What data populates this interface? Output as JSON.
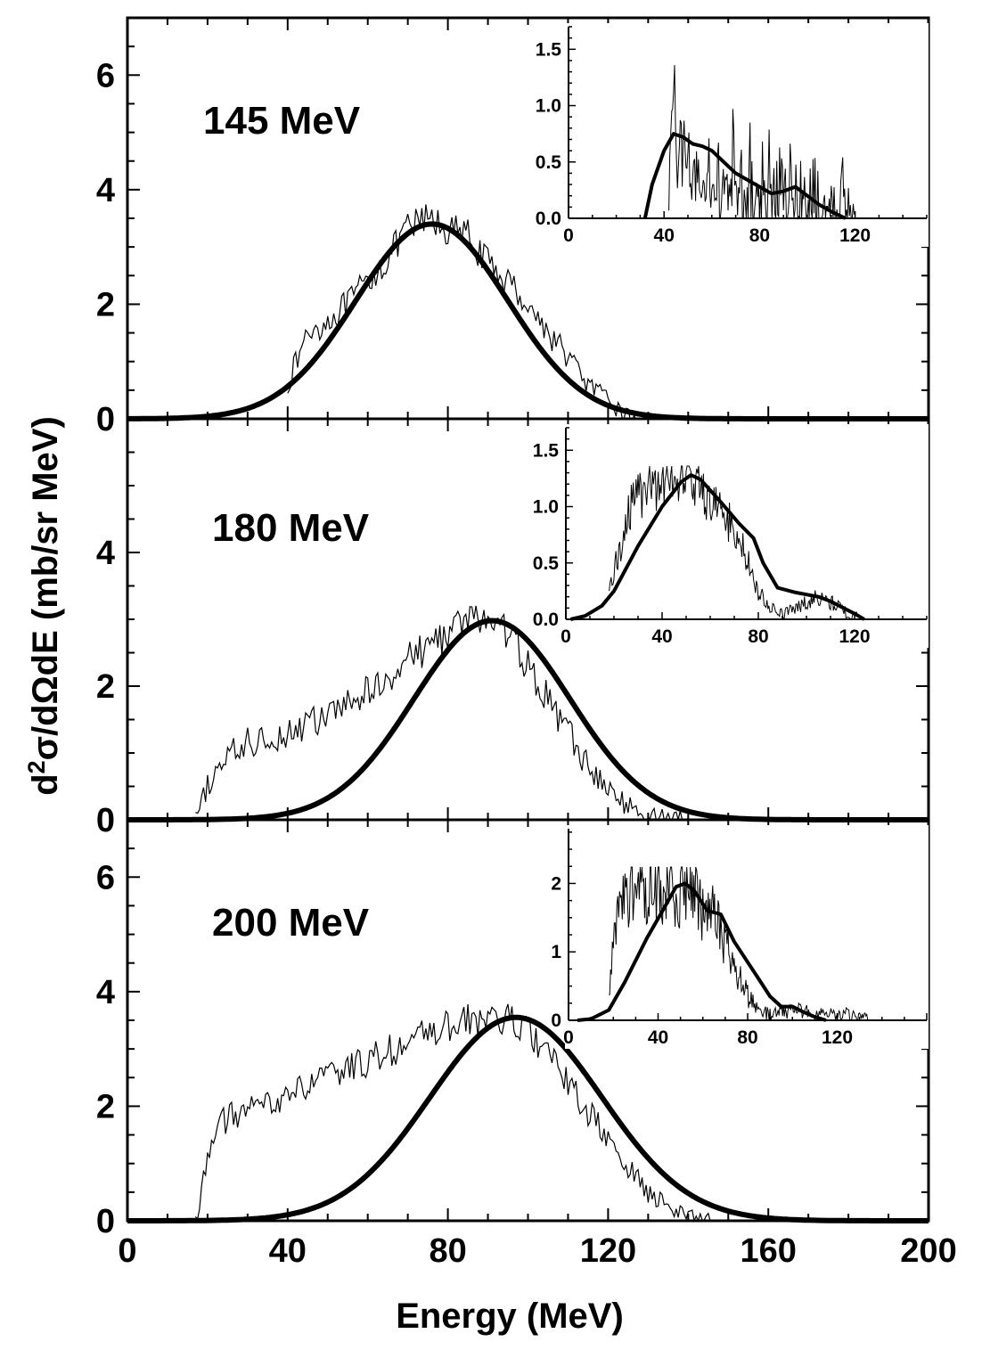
{
  "chart_data": {
    "type": "line",
    "xlabel": "Energy (MeV)",
    "ylabel_parts": {
      "d": "d",
      "sup": "2",
      "rest": "σ/dΩdE (mb/sr MeV)"
    },
    "xlim": [
      0,
      200
    ],
    "xticks": [
      "0",
      "40",
      "80",
      "120",
      "160",
      "200"
    ],
    "series_types": [
      "data",
      "calculation"
    ],
    "panels": [
      {
        "label": "145 MeV",
        "ylim": [
          0,
          7
        ],
        "yticks": [
          "0",
          "2",
          "4",
          "6"
        ],
        "ytick_values": [
          0,
          2,
          4,
          6
        ],
        "data_start": 40,
        "data_end": 127,
        "data_profile": [
          [
            40,
            0.6
          ],
          [
            45,
            1.5
          ],
          [
            50,
            1.7
          ],
          [
            55,
            2.0
          ],
          [
            60,
            2.4
          ],
          [
            65,
            2.8
          ],
          [
            70,
            3.3
          ],
          [
            75,
            3.5
          ],
          [
            80,
            3.3
          ],
          [
            85,
            3.2
          ],
          [
            90,
            2.7
          ],
          [
            95,
            2.4
          ],
          [
            100,
            2.0
          ],
          [
            105,
            1.5
          ],
          [
            110,
            1.1
          ],
          [
            115,
            0.6
          ],
          [
            120,
            0.3
          ],
          [
            125,
            0.05
          ],
          [
            127,
            0
          ]
        ],
        "calc_gauss": {
          "amp": 3.4,
          "center": 76,
          "sigma": 19
        },
        "inset": {
          "xlim": [
            0,
            150
          ],
          "ylim": [
            0,
            1.7
          ],
          "xticks": [
            "0",
            "40",
            "80",
            "120"
          ],
          "xtick_values": [
            0,
            40,
            80,
            120
          ],
          "yticks": [
            "0.0",
            "0.5",
            "1.0",
            "1.5"
          ],
          "ytick_values": [
            0,
            0.5,
            1.0,
            1.5
          ],
          "calc": [
            [
              32,
              0
            ],
            [
              35,
              0.3
            ],
            [
              40,
              0.6
            ],
            [
              44,
              0.75
            ],
            [
              48,
              0.72
            ],
            [
              52,
              0.66
            ],
            [
              56,
              0.64
            ],
            [
              60,
              0.6
            ],
            [
              65,
              0.5
            ],
            [
              70,
              0.4
            ],
            [
              75,
              0.34
            ],
            [
              80,
              0.28
            ],
            [
              85,
              0.22
            ],
            [
              90,
              0.24
            ],
            [
              95,
              0.28
            ],
            [
              100,
              0.2
            ],
            [
              105,
              0.12
            ],
            [
              110,
              0.06
            ],
            [
              116,
              0
            ]
          ],
          "data_profile": [
            [
              42,
              0.3
            ],
            [
              44,
              0.8
            ],
            [
              46,
              0.7
            ],
            [
              50,
              0.4
            ],
            [
              55,
              0.25
            ],
            [
              60,
              0.2
            ],
            [
              70,
              0.15
            ],
            [
              80,
              0.12
            ],
            [
              90,
              0.12
            ],
            [
              100,
              0.08
            ],
            [
              110,
              0.05
            ],
            [
              120,
              0.02
            ]
          ]
        }
      },
      {
        "label": "180 MeV",
        "ylim": [
          0,
          6
        ],
        "yticks": [
          "0",
          "2",
          "4"
        ],
        "ytick_values": [
          0,
          2,
          4
        ],
        "data_start": 17,
        "data_end": 140,
        "data_profile": [
          [
            17,
            0
          ],
          [
            20,
            0.5
          ],
          [
            24,
            0.9
          ],
          [
            30,
            1.15
          ],
          [
            40,
            1.3
          ],
          [
            50,
            1.55
          ],
          [
            60,
            1.9
          ],
          [
            70,
            2.4
          ],
          [
            80,
            2.8
          ],
          [
            85,
            3.0
          ],
          [
            90,
            3.0
          ],
          [
            95,
            2.8
          ],
          [
            100,
            2.3
          ],
          [
            105,
            1.8
          ],
          [
            110,
            1.3
          ],
          [
            115,
            0.8
          ],
          [
            120,
            0.45
          ],
          [
            125,
            0.2
          ],
          [
            130,
            0.08
          ],
          [
            135,
            0.02
          ],
          [
            140,
            0
          ]
        ],
        "calc_gauss": {
          "amp": 2.98,
          "center": 91,
          "sigma": 19.5
        },
        "inset": {
          "xlim": [
            0,
            150
          ],
          "ylim": [
            0,
            1.7
          ],
          "xticks": [
            "0",
            "40",
            "80",
            "120"
          ],
          "xtick_values": [
            0,
            40,
            80,
            120
          ],
          "yticks": [
            "0.0",
            "0.5",
            "1.0",
            "1.5"
          ],
          "ytick_values": [
            0,
            0.5,
            1.0,
            1.5
          ],
          "calc": [
            [
              2,
              0
            ],
            [
              8,
              0.03
            ],
            [
              15,
              0.12
            ],
            [
              20,
              0.25
            ],
            [
              30,
              0.65
            ],
            [
              40,
              1.0
            ],
            [
              48,
              1.22
            ],
            [
              52,
              1.28
            ],
            [
              56,
              1.24
            ],
            [
              64,
              1.05
            ],
            [
              72,
              0.85
            ],
            [
              78,
              0.72
            ],
            [
              82,
              0.5
            ],
            [
              88,
              0.28
            ],
            [
              95,
              0.24
            ],
            [
              100,
              0.22
            ],
            [
              105,
              0.2
            ],
            [
              110,
              0.16
            ],
            [
              120,
              0.05
            ],
            [
              124,
              0
            ]
          ],
          "data_profile": [
            [
              18,
              0.25
            ],
            [
              22,
              0.6
            ],
            [
              26,
              0.95
            ],
            [
              30,
              1.08
            ],
            [
              40,
              1.2
            ],
            [
              45,
              1.28
            ],
            [
              50,
              1.28
            ],
            [
              55,
              1.2
            ],
            [
              60,
              1.05
            ],
            [
              65,
              0.95
            ],
            [
              70,
              0.8
            ],
            [
              75,
              0.55
            ],
            [
              80,
              0.25
            ],
            [
              85,
              0.1
            ],
            [
              90,
              0.04
            ],
            [
              95,
              0.1
            ],
            [
              105,
              0.2
            ],
            [
              110,
              0.15
            ],
            [
              118,
              0.05
            ],
            [
              122,
              0
            ]
          ]
        }
      },
      {
        "label": "200 MeV",
        "ylim": [
          0,
          7
        ],
        "yticks": [
          "0",
          "2",
          "4",
          "6"
        ],
        "ytick_values": [
          0,
          2,
          4,
          6
        ],
        "data_start": 17,
        "data_end": 146,
        "data_profile": [
          [
            17,
            0
          ],
          [
            19,
            0.7
          ],
          [
            21,
            1.5
          ],
          [
            25,
            1.8
          ],
          [
            30,
            1.9
          ],
          [
            40,
            2.2
          ],
          [
            50,
            2.5
          ],
          [
            60,
            2.8
          ],
          [
            70,
            3.1
          ],
          [
            80,
            3.4
          ],
          [
            90,
            3.55
          ],
          [
            95,
            3.5
          ],
          [
            100,
            3.3
          ],
          [
            105,
            2.9
          ],
          [
            110,
            2.4
          ],
          [
            115,
            1.9
          ],
          [
            120,
            1.4
          ],
          [
            125,
            0.9
          ],
          [
            130,
            0.5
          ],
          [
            135,
            0.25
          ],
          [
            140,
            0.1
          ],
          [
            146,
            0
          ]
        ],
        "calc_gauss": {
          "amp": 3.55,
          "center": 97,
          "sigma": 21.5
        },
        "inset": {
          "xlim": [
            0,
            160
          ],
          "ylim": [
            0,
            2.8
          ],
          "xticks": [
            "0",
            "40",
            "80",
            "120"
          ],
          "xtick_values": [
            0,
            40,
            80,
            120
          ],
          "yticks": [
            "0",
            "1",
            "2"
          ],
          "ytick_values": [
            0,
            1,
            2
          ],
          "calc": [
            [
              4,
              0
            ],
            [
              10,
              0.02
            ],
            [
              18,
              0.15
            ],
            [
              25,
              0.55
            ],
            [
              35,
              1.2
            ],
            [
              42,
              1.6
            ],
            [
              48,
              1.95
            ],
            [
              52,
              2.0
            ],
            [
              56,
              1.9
            ],
            [
              62,
              1.6
            ],
            [
              68,
              1.55
            ],
            [
              74,
              1.15
            ],
            [
              80,
              0.85
            ],
            [
              85,
              0.6
            ],
            [
              90,
              0.35
            ],
            [
              95,
              0.2
            ],
            [
              100,
              0.2
            ],
            [
              105,
              0.12
            ],
            [
              110,
              0.05
            ],
            [
              115,
              0
            ]
          ],
          "data_profile": [
            [
              18,
              0.3
            ],
            [
              20,
              1.0
            ],
            [
              22,
              1.6
            ],
            [
              25,
              1.85
            ],
            [
              30,
              1.9
            ],
            [
              35,
              1.95
            ],
            [
              45,
              1.95
            ],
            [
              50,
              1.9
            ],
            [
              55,
              1.85
            ],
            [
              60,
              1.6
            ],
            [
              65,
              1.5
            ],
            [
              70,
              1.1
            ],
            [
              75,
              0.7
            ],
            [
              80,
              0.35
            ],
            [
              85,
              0.15
            ],
            [
              90,
              0.08
            ],
            [
              100,
              0.15
            ],
            [
              110,
              0.12
            ],
            [
              120,
              0.1
            ],
            [
              130,
              0.06
            ],
            [
              134,
              0
            ]
          ]
        }
      }
    ]
  }
}
